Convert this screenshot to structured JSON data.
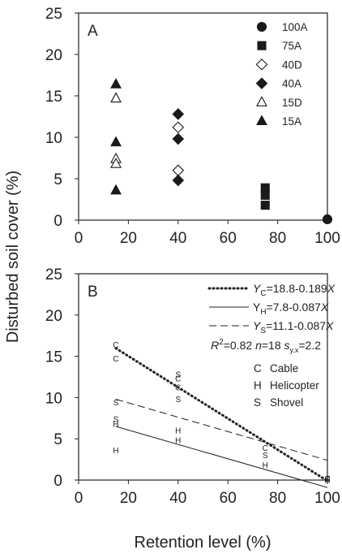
{
  "figure": {
    "ylabel": "Disturbed soil cover (%)",
    "xlabel": "Retention level (%)"
  },
  "chart_data": [
    {
      "panel": "A",
      "type": "scatter",
      "xlim": [
        0,
        100
      ],
      "ylim": [
        0,
        25
      ],
      "xticks": [
        "0",
        "20",
        "40",
        "60",
        "80",
        "100"
      ],
      "yticks": [
        "0",
        "5",
        "10",
        "15",
        "20",
        "25"
      ],
      "legend_position": "top-right",
      "series": [
        {
          "name": "100A",
          "marker": "circle-filled",
          "points": [
            [
              100,
              0.1
            ]
          ]
        },
        {
          "name": "75A",
          "marker": "square-filled",
          "points": [
            [
              75,
              3.9
            ],
            [
              75,
              3.0
            ],
            [
              75,
              1.8
            ]
          ]
        },
        {
          "name": "40D",
          "marker": "diamond-open",
          "points": [
            [
              40,
              11.2
            ],
            [
              40,
              6.0
            ]
          ]
        },
        {
          "name": "40A",
          "marker": "diamond-filled",
          "points": [
            [
              40,
              12.8
            ],
            [
              40,
              9.8
            ],
            [
              40,
              4.8
            ]
          ]
        },
        {
          "name": "15D",
          "marker": "triangle-open",
          "points": [
            [
              15,
              14.7
            ],
            [
              15,
              7.4
            ],
            [
              15,
              6.8
            ]
          ]
        },
        {
          "name": "15A",
          "marker": "triangle-filled",
          "points": [
            [
              15,
              16.4
            ],
            [
              15,
              9.4
            ],
            [
              15,
              3.6
            ]
          ]
        }
      ]
    },
    {
      "panel": "B",
      "type": "scatter",
      "xlim": [
        0,
        100
      ],
      "ylim": [
        0,
        25
      ],
      "xticks": [
        "0",
        "20",
        "40",
        "60",
        "80",
        "100"
      ],
      "yticks": [
        "0",
        "5",
        "10",
        "15",
        "20",
        "25"
      ],
      "legend_position": "top-right",
      "equations": {
        "cable": {
          "lhs": "Y",
          "sub": "C",
          "rhs": "=18.8-0.189",
          "var": "X"
        },
        "heli": {
          "lhs": "Y",
          "sub": "H",
          "rhs": "=7.8-0.087",
          "var": "X"
        },
        "shovel": {
          "lhs": "Y",
          "sub": "S",
          "rhs": "=11.1-0.087",
          "var": "X"
        },
        "stats": {
          "r": "R",
          "r_sup": "2",
          "r_val": "=0.82 ",
          "n": "n",
          "n_val": "=18 ",
          "s": "s",
          "s_sub": "y.x",
          "s_val": "=2.2"
        }
      },
      "lines": [
        {
          "name": "Cable",
          "style": "dotted",
          "intercept": 18.8,
          "slope": -0.189
        },
        {
          "name": "Helicopter",
          "style": "solid",
          "intercept": 7.8,
          "slope": -0.087
        },
        {
          "name": "Shovel",
          "style": "dashed",
          "intercept": 11.1,
          "slope": -0.087
        }
      ],
      "line_xrange": [
        15,
        100
      ],
      "point_key": [
        {
          "code": "C",
          "label": "Cable"
        },
        {
          "code": "H",
          "label": "Helicopter"
        },
        {
          "code": "S",
          "label": "Shovel"
        }
      ],
      "points": [
        {
          "code": "C",
          "x": 15,
          "y": 16.4
        },
        {
          "code": "C",
          "x": 15,
          "y": 14.7
        },
        {
          "code": "S",
          "x": 15,
          "y": 9.4
        },
        {
          "code": "S",
          "x": 15,
          "y": 7.4
        },
        {
          "code": "H",
          "x": 15,
          "y": 6.8
        },
        {
          "code": "H",
          "x": 15,
          "y": 3.6
        },
        {
          "code": "S",
          "x": 40,
          "y": 12.8
        },
        {
          "code": "C",
          "x": 40,
          "y": 12.3
        },
        {
          "code": "C",
          "x": 40,
          "y": 11.2
        },
        {
          "code": "S",
          "x": 40,
          "y": 9.8
        },
        {
          "code": "H",
          "x": 40,
          "y": 6.0
        },
        {
          "code": "H",
          "x": 40,
          "y": 4.8
        },
        {
          "code": "C",
          "x": 75,
          "y": 3.9
        },
        {
          "code": "S",
          "x": 75,
          "y": 3.0
        },
        {
          "code": "H",
          "x": 75,
          "y": 1.8
        },
        {
          "code": "C",
          "x": 100,
          "y": 0.2
        },
        {
          "code": "S",
          "x": 100,
          "y": 0.1
        },
        {
          "code": "H",
          "x": 100,
          "y": 0.0
        }
      ]
    }
  ]
}
